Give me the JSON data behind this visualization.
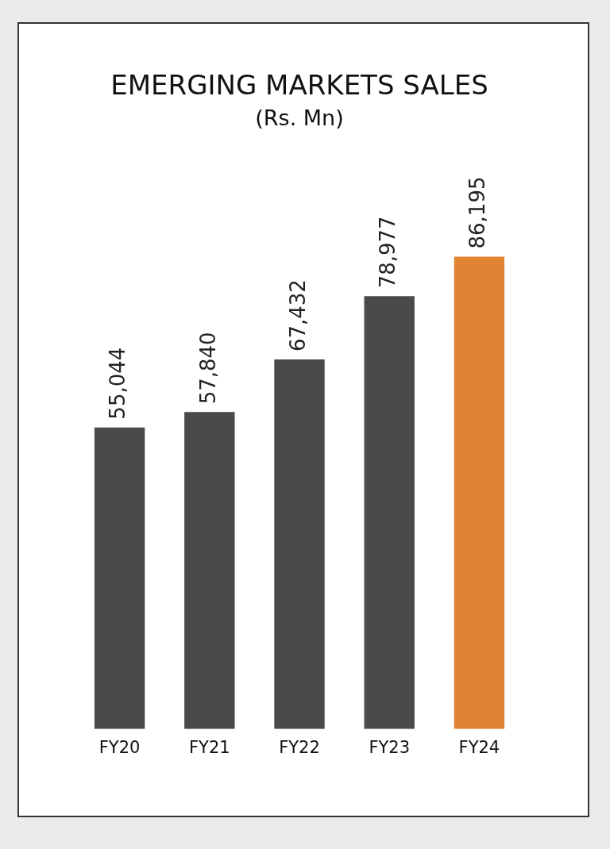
{
  "chart_data": {
    "type": "bar",
    "title": "EMERGING MARKETS SALES",
    "subtitle": "(Rs. Mn)",
    "categories": [
      "FY20",
      "FY21",
      "FY22",
      "FY23",
      "FY24"
    ],
    "values": [
      55044,
      57840,
      67432,
      78977,
      86195
    ],
    "colors": [
      "#4a4a4a",
      "#4a4a4a",
      "#4a4a4a",
      "#4a4a4a",
      "#e08434"
    ],
    "value_labels": [
      "55,044",
      "57,840",
      "67,432",
      "78,977",
      "86,195"
    ],
    "grid": false,
    "legend": false
  }
}
